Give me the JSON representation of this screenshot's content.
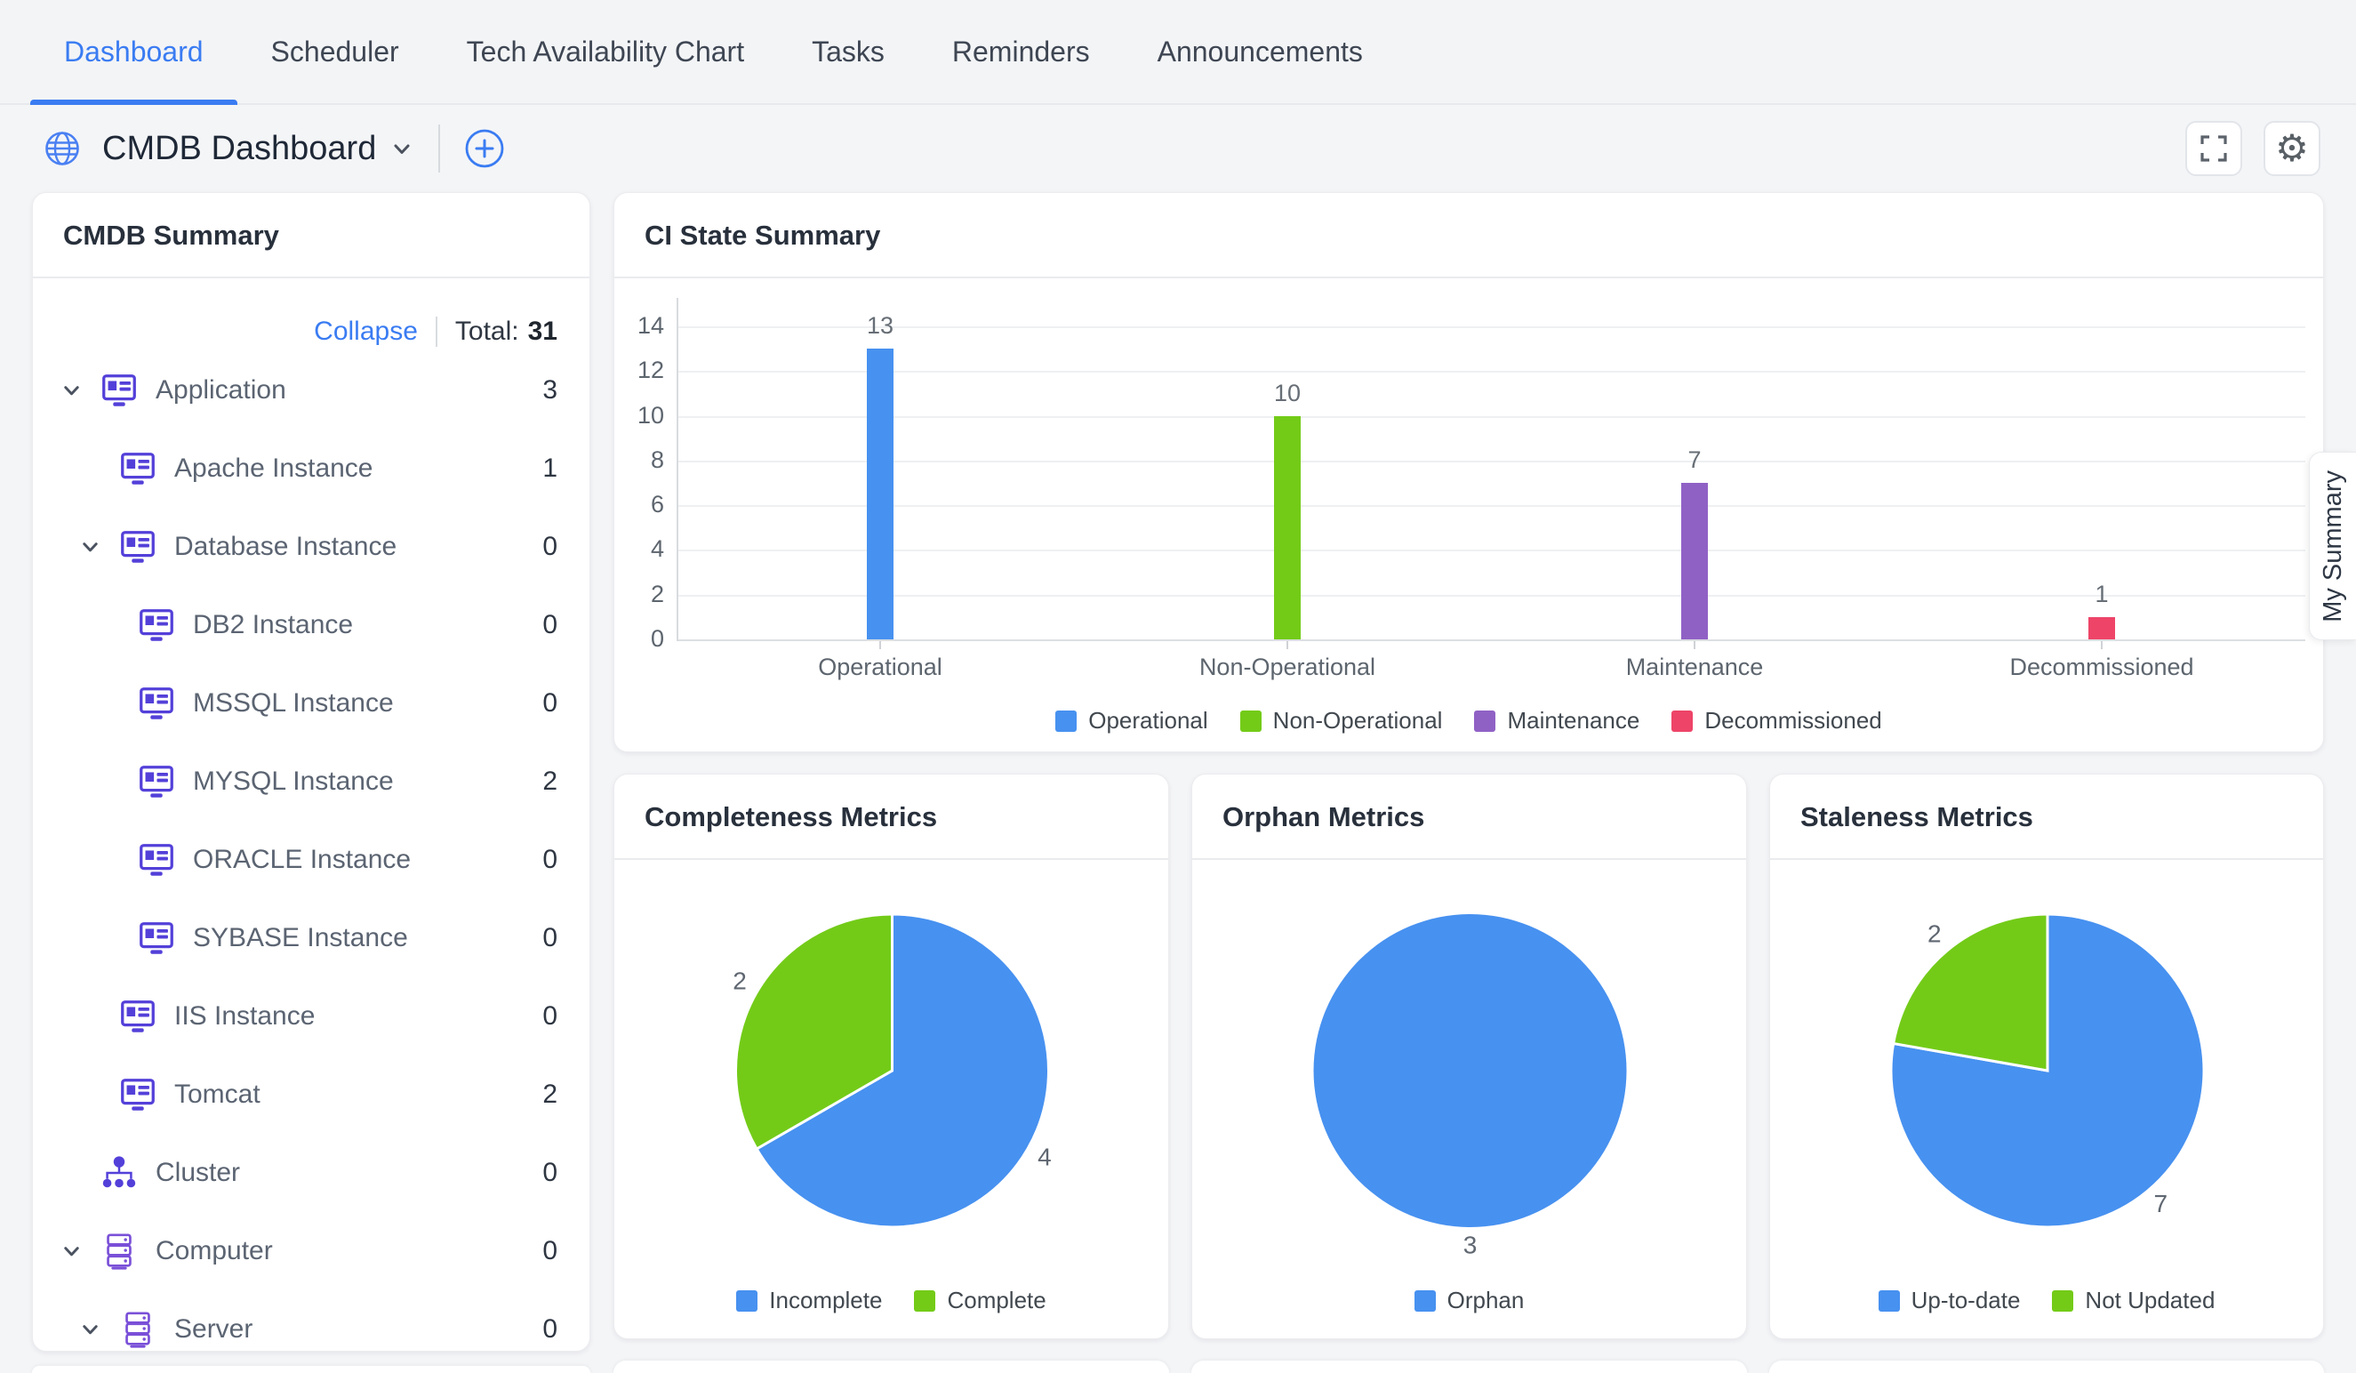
{
  "nav": {
    "items": [
      {
        "label": "Dashboard",
        "active": true
      },
      {
        "label": "Scheduler",
        "active": false
      },
      {
        "label": "Tech Availability Chart",
        "active": false
      },
      {
        "label": "Tasks",
        "active": false
      },
      {
        "label": "Reminders",
        "active": false
      },
      {
        "label": "Announcements",
        "active": false
      }
    ]
  },
  "header": {
    "title": "CMDB Dashboard",
    "icons": [
      "globe-icon",
      "chevron-down-icon",
      "plus-circle-icon"
    ],
    "actions": [
      {
        "icon": "fullscreen-icon"
      },
      {
        "icon": "gear-icon"
      }
    ]
  },
  "side_tab": {
    "label": "My Summary"
  },
  "cmdb_summary": {
    "title": "CMDB Summary",
    "collapse_label": "Collapse",
    "total_label": "Total:",
    "total_value": "31",
    "tree": [
      {
        "label": "Application",
        "count": 3,
        "level": 0,
        "expandable": true,
        "icon": "application"
      },
      {
        "label": "Apache Instance",
        "count": 1,
        "level": 1,
        "expandable": false,
        "icon": "application"
      },
      {
        "label": "Database Instance",
        "count": 0,
        "level": 1,
        "expandable": true,
        "icon": "application"
      },
      {
        "label": "DB2 Instance",
        "count": 0,
        "level": 2,
        "expandable": false,
        "icon": "application"
      },
      {
        "label": "MSSQL Instance",
        "count": 0,
        "level": 2,
        "expandable": false,
        "icon": "application"
      },
      {
        "label": "MYSQL Instance",
        "count": 2,
        "level": 2,
        "expandable": false,
        "icon": "application"
      },
      {
        "label": "ORACLE Instance",
        "count": 0,
        "level": 2,
        "expandable": false,
        "icon": "application"
      },
      {
        "label": "SYBASE Instance",
        "count": 0,
        "level": 2,
        "expandable": false,
        "icon": "application"
      },
      {
        "label": "IIS Instance",
        "count": 0,
        "level": 1,
        "expandable": false,
        "icon": "application"
      },
      {
        "label": "Tomcat",
        "count": 2,
        "level": 1,
        "expandable": false,
        "icon": "application"
      },
      {
        "label": "Cluster",
        "count": 0,
        "level": 0,
        "expandable": false,
        "icon": "cluster"
      },
      {
        "label": "Computer",
        "count": 0,
        "level": 0,
        "expandable": true,
        "icon": "computer"
      },
      {
        "label": "Server",
        "count": 0,
        "level": 1,
        "expandable": true,
        "icon": "server"
      }
    ]
  },
  "colors": {
    "accent_blue": "#3a7cf2",
    "chart_blue": "#4791f0",
    "chart_green": "#73cb18",
    "chart_purple": "#9061c5",
    "chart_pink": "#ee4468",
    "icon_indigo": "#5340d9",
    "icon_purple": "#7a50d8"
  },
  "chart_data": [
    {
      "type": "bar",
      "title": "CI State Summary",
      "categories": [
        "Operational",
        "Non-Operational",
        "Maintenance",
        "Decommissioned"
      ],
      "values": [
        13,
        10,
        7,
        1
      ],
      "colors": [
        "#4791f0",
        "#73cb18",
        "#9061c5",
        "#ee4468"
      ],
      "xlabel": "",
      "ylabel": "",
      "ylim": [
        0,
        14
      ],
      "ytick_step": 2,
      "grid": true,
      "legend_position": "bottom",
      "legend": [
        "Operational",
        "Non-Operational",
        "Maintenance",
        "Decommissioned"
      ]
    },
    {
      "type": "pie",
      "title": "Completeness Metrics",
      "labels": [
        "Incomplete",
        "Complete"
      ],
      "values": [
        4,
        2
      ],
      "colors": [
        "#4791f0",
        "#73cb18"
      ],
      "legend_position": "bottom"
    },
    {
      "type": "pie",
      "title": "Orphan Metrics",
      "labels": [
        "Orphan"
      ],
      "values": [
        3
      ],
      "colors": [
        "#4791f0"
      ],
      "legend_position": "bottom"
    },
    {
      "type": "pie",
      "title": "Staleness Metrics",
      "labels": [
        "Up-to-date",
        "Not Updated"
      ],
      "values": [
        7,
        2
      ],
      "colors": [
        "#4791f0",
        "#73cb18"
      ],
      "legend_position": "bottom"
    }
  ]
}
